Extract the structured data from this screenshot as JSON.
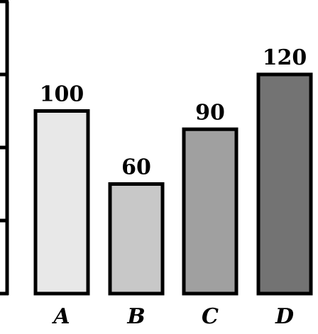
{
  "chart_data": {
    "type": "bar",
    "categories": [
      "A",
      "B",
      "C",
      "D"
    ],
    "values": [
      100,
      60,
      90,
      120
    ],
    "title": "",
    "xlabel": "",
    "ylabel": "",
    "ylim": [
      0,
      160
    ],
    "yticks": [
      0,
      40,
      80,
      120,
      160
    ],
    "grid": false,
    "data_labels": true,
    "bar_colors": [
      "#e8e8e8",
      "#c8c8c8",
      "#a0a0a0",
      "#737373"
    ]
  }
}
